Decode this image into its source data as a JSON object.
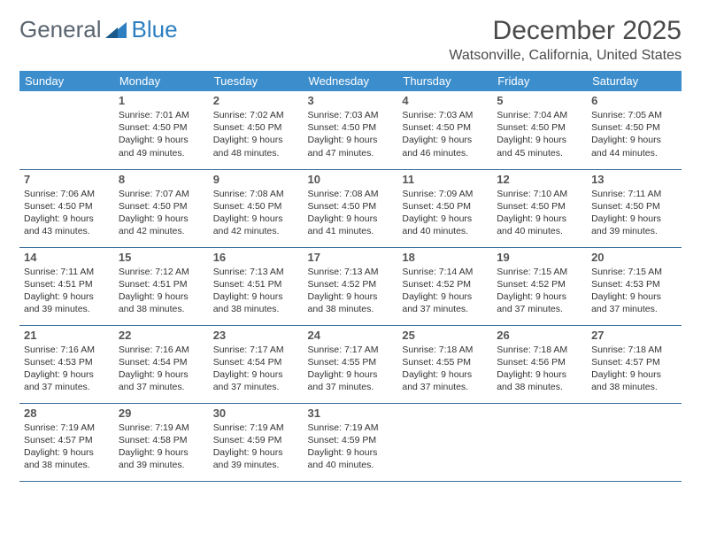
{
  "brand": {
    "part1": "General",
    "part2": "Blue"
  },
  "title": "December 2025",
  "location": "Watsonville, California, United States",
  "colors": {
    "header_bg": "#3c8dcc",
    "header_text": "#ffffff",
    "row_border": "#3c6d9a",
    "logo_gray": "#5a6570",
    "logo_blue": "#2d7fc1"
  },
  "weekdays": [
    "Sunday",
    "Monday",
    "Tuesday",
    "Wednesday",
    "Thursday",
    "Friday",
    "Saturday"
  ],
  "weeks": [
    [
      null,
      {
        "n": "1",
        "sr": "7:01 AM",
        "ss": "4:50 PM",
        "dl": "9 hours and 49 minutes."
      },
      {
        "n": "2",
        "sr": "7:02 AM",
        "ss": "4:50 PM",
        "dl": "9 hours and 48 minutes."
      },
      {
        "n": "3",
        "sr": "7:03 AM",
        "ss": "4:50 PM",
        "dl": "9 hours and 47 minutes."
      },
      {
        "n": "4",
        "sr": "7:03 AM",
        "ss": "4:50 PM",
        "dl": "9 hours and 46 minutes."
      },
      {
        "n": "5",
        "sr": "7:04 AM",
        "ss": "4:50 PM",
        "dl": "9 hours and 45 minutes."
      },
      {
        "n": "6",
        "sr": "7:05 AM",
        "ss": "4:50 PM",
        "dl": "9 hours and 44 minutes."
      }
    ],
    [
      {
        "n": "7",
        "sr": "7:06 AM",
        "ss": "4:50 PM",
        "dl": "9 hours and 43 minutes."
      },
      {
        "n": "8",
        "sr": "7:07 AM",
        "ss": "4:50 PM",
        "dl": "9 hours and 42 minutes."
      },
      {
        "n": "9",
        "sr": "7:08 AM",
        "ss": "4:50 PM",
        "dl": "9 hours and 42 minutes."
      },
      {
        "n": "10",
        "sr": "7:08 AM",
        "ss": "4:50 PM",
        "dl": "9 hours and 41 minutes."
      },
      {
        "n": "11",
        "sr": "7:09 AM",
        "ss": "4:50 PM",
        "dl": "9 hours and 40 minutes."
      },
      {
        "n": "12",
        "sr": "7:10 AM",
        "ss": "4:50 PM",
        "dl": "9 hours and 40 minutes."
      },
      {
        "n": "13",
        "sr": "7:11 AM",
        "ss": "4:50 PM",
        "dl": "9 hours and 39 minutes."
      }
    ],
    [
      {
        "n": "14",
        "sr": "7:11 AM",
        "ss": "4:51 PM",
        "dl": "9 hours and 39 minutes."
      },
      {
        "n": "15",
        "sr": "7:12 AM",
        "ss": "4:51 PM",
        "dl": "9 hours and 38 minutes."
      },
      {
        "n": "16",
        "sr": "7:13 AM",
        "ss": "4:51 PM",
        "dl": "9 hours and 38 minutes."
      },
      {
        "n": "17",
        "sr": "7:13 AM",
        "ss": "4:52 PM",
        "dl": "9 hours and 38 minutes."
      },
      {
        "n": "18",
        "sr": "7:14 AM",
        "ss": "4:52 PM",
        "dl": "9 hours and 37 minutes."
      },
      {
        "n": "19",
        "sr": "7:15 AM",
        "ss": "4:52 PM",
        "dl": "9 hours and 37 minutes."
      },
      {
        "n": "20",
        "sr": "7:15 AM",
        "ss": "4:53 PM",
        "dl": "9 hours and 37 minutes."
      }
    ],
    [
      {
        "n": "21",
        "sr": "7:16 AM",
        "ss": "4:53 PM",
        "dl": "9 hours and 37 minutes."
      },
      {
        "n": "22",
        "sr": "7:16 AM",
        "ss": "4:54 PM",
        "dl": "9 hours and 37 minutes."
      },
      {
        "n": "23",
        "sr": "7:17 AM",
        "ss": "4:54 PM",
        "dl": "9 hours and 37 minutes."
      },
      {
        "n": "24",
        "sr": "7:17 AM",
        "ss": "4:55 PM",
        "dl": "9 hours and 37 minutes."
      },
      {
        "n": "25",
        "sr": "7:18 AM",
        "ss": "4:55 PM",
        "dl": "9 hours and 37 minutes."
      },
      {
        "n": "26",
        "sr": "7:18 AM",
        "ss": "4:56 PM",
        "dl": "9 hours and 38 minutes."
      },
      {
        "n": "27",
        "sr": "7:18 AM",
        "ss": "4:57 PM",
        "dl": "9 hours and 38 minutes."
      }
    ],
    [
      {
        "n": "28",
        "sr": "7:19 AM",
        "ss": "4:57 PM",
        "dl": "9 hours and 38 minutes."
      },
      {
        "n": "29",
        "sr": "7:19 AM",
        "ss": "4:58 PM",
        "dl": "9 hours and 39 minutes."
      },
      {
        "n": "30",
        "sr": "7:19 AM",
        "ss": "4:59 PM",
        "dl": "9 hours and 39 minutes."
      },
      {
        "n": "31",
        "sr": "7:19 AM",
        "ss": "4:59 PM",
        "dl": "9 hours and 40 minutes."
      },
      null,
      null,
      null
    ]
  ],
  "labels": {
    "sunrise": "Sunrise:",
    "sunset": "Sunset:",
    "daylight": "Daylight:"
  }
}
